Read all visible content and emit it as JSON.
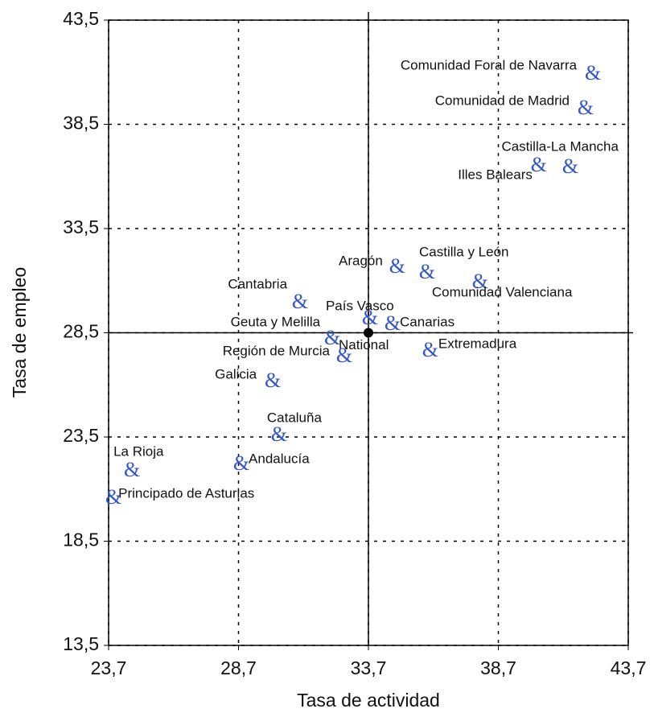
{
  "chart_data": {
    "type": "scatter",
    "x_label": "Tasa de actividad",
    "y_label": "Tasa de empleo",
    "marker": "&",
    "color": "#3355cc",
    "labels": [
      "Comunidad Foral de Navarra",
      "Comunidad de Madrid",
      "Castilla-La Mancha",
      "Illes Balears",
      "Castilla y León",
      "Aragón",
      "Comunidad Valenciana",
      "Cantabria",
      "País Vasco",
      "Canarias",
      "Ceuta y Melilla",
      "Región de Murcia",
      "Extremadura",
      "Galicia",
      "Cataluña",
      "Andalucía",
      "La Rioja",
      "Principado de Asturias"
    ],
    "x": [
      42.34,
      42.06,
      41.47,
      40.26,
      35.96,
      34.81,
      38.0,
      31.07,
      33.76,
      34.63,
      32.31,
      32.77,
      36.08,
      30.02,
      30.26,
      28.81,
      24.6,
      23.89
    ],
    "values": [
      40.87,
      39.21,
      36.4,
      36.47,
      31.34,
      31.61,
      30.87,
      29.91,
      29.14,
      28.87,
      28.17,
      27.32,
      27.59,
      26.13,
      23.54,
      22.15,
      21.84,
      20.53
    ],
    "reference": {
      "label": "National",
      "x": 33.7,
      "y": 28.5
    },
    "xlim": [
      23.7,
      43.7
    ],
    "ylim": [
      13.5,
      43.5
    ],
    "xticks": [
      {
        "value": 23.7,
        "label": "23,7"
      },
      {
        "value": 28.7,
        "label": "28,7"
      },
      {
        "value": 33.7,
        "label": "33,7"
      },
      {
        "value": 38.7,
        "label": "38,7"
      },
      {
        "value": 43.7,
        "label": "43,7"
      }
    ],
    "yticks": [
      {
        "value": 13.5,
        "label": "13,5"
      },
      {
        "value": 18.5,
        "label": "18,5"
      },
      {
        "value": 23.5,
        "label": "23,5"
      },
      {
        "value": 28.5,
        "label": "28,5"
      },
      {
        "value": 33.5,
        "label": "33,5"
      },
      {
        "value": 38.5,
        "label": "38,5"
      },
      {
        "value": 43.5,
        "label": "43,5"
      }
    ],
    "grid": true
  }
}
